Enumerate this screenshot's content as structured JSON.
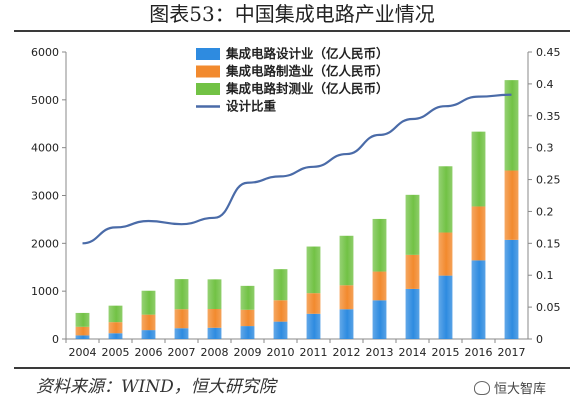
{
  "header": {
    "title": "图表53：中国集成电路产业情况"
  },
  "footer": {
    "source": "资料来源：WIND，恒大研究院",
    "watermark": "恒大智库",
    "watermark_icon": "wechat-icon"
  },
  "chart_data": {
    "type": "bar",
    "stacked": true,
    "categories": [
      "2004",
      "2005",
      "2006",
      "2007",
      "2008",
      "2009",
      "2010",
      "2011",
      "2012",
      "2013",
      "2014",
      "2015",
      "2016",
      "2017"
    ],
    "series": [
      {
        "name": "集成电路设计业（亿人民币）",
        "type": "bar",
        "color": "#2e8be0",
        "values": [
          75,
          120,
          186,
          225,
          235,
          270,
          363,
          527,
          622,
          809,
          1047,
          1325,
          1644,
          2073
        ]
      },
      {
        "name": "集成电路制造业（亿人民币）",
        "type": "bar",
        "color": "#f28a2e",
        "values": [
          180,
          232,
          323,
          397,
          392,
          341,
          447,
          431,
          501,
          601,
          712,
          901,
          1127,
          1449
        ]
      },
      {
        "name": "集成电路封测业（亿人民币）",
        "type": "bar",
        "color": "#72c245",
        "values": [
          290,
          345,
          500,
          630,
          620,
          500,
          650,
          975,
          1035,
          1100,
          1255,
          1385,
          1564,
          1890
        ]
      },
      {
        "name": "设计比重",
        "type": "line",
        "axis": "right",
        "color": "#4a6ba8",
        "values": [
          0.15,
          0.175,
          0.185,
          0.18,
          0.19,
          0.245,
          0.255,
          0.27,
          0.29,
          0.32,
          0.345,
          0.365,
          0.38,
          0.383
        ]
      }
    ],
    "ylim": [
      0,
      6000
    ],
    "yticks": [
      0,
      1000,
      2000,
      3000,
      4000,
      5000,
      6000
    ],
    "y2lim": [
      0,
      0.45
    ],
    "y2ticks": [
      "0",
      "0.05",
      "0.1",
      "0.15",
      "0.2",
      "0.25",
      "0.3",
      "0.35",
      "0.4",
      "0.45"
    ],
    "legend_position": "top-center",
    "grid": false
  }
}
